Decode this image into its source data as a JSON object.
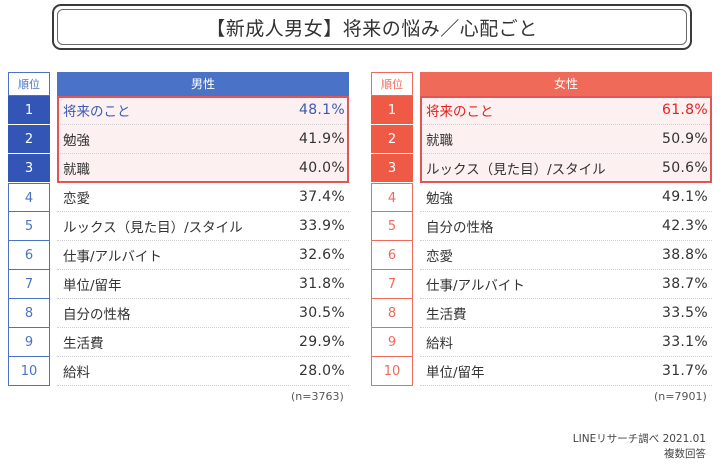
{
  "title": "【新成人男女】将来の悩み／心配ごと",
  "rank_header": "順位",
  "colors": {
    "male_header": "#4a73c8",
    "male_rank_top": "#3355b5",
    "male_top_text": "#3b5bb5",
    "female_header": "#f06a5a",
    "female_rank_top": "#ef5a47",
    "female_top_text": "#e82020",
    "highlight_bg": "#fdf0f0",
    "highlight_border": "#e05555"
  },
  "chart_data": [
    {
      "type": "table",
      "header": "男性",
      "ranks": [
        "1",
        "2",
        "3",
        "4",
        "5",
        "6",
        "7",
        "8",
        "9",
        "10"
      ],
      "items": [
        "将来のこと",
        "勉強",
        "就職",
        "恋愛",
        "ルックス（見た目）/スタイル",
        "仕事/アルバイト",
        "単位/留年",
        "自分の性格",
        "生活費",
        "給料"
      ],
      "values": [
        "48.1%",
        "41.9%",
        "40.0%",
        "37.4%",
        "33.9%",
        "32.6%",
        "31.8%",
        "30.5%",
        "29.9%",
        "28.0%"
      ],
      "n": "(n=3763)"
    },
    {
      "type": "table",
      "header": "女性",
      "ranks": [
        "1",
        "2",
        "3",
        "4",
        "5",
        "6",
        "7",
        "8",
        "9",
        "10"
      ],
      "items": [
        "将来のこと",
        "就職",
        "ルックス（見た目）/スタイル",
        "勉強",
        "自分の性格",
        "恋愛",
        "仕事/アルバイト",
        "生活費",
        "給料",
        "単位/留年"
      ],
      "values": [
        "61.8%",
        "50.9%",
        "50.6%",
        "49.1%",
        "42.3%",
        "38.8%",
        "38.7%",
        "33.5%",
        "33.1%",
        "31.7%"
      ],
      "n": "(n=7901)"
    }
  ],
  "source": "LINEリサーチ調べ 2021.01",
  "note": "複数回答"
}
